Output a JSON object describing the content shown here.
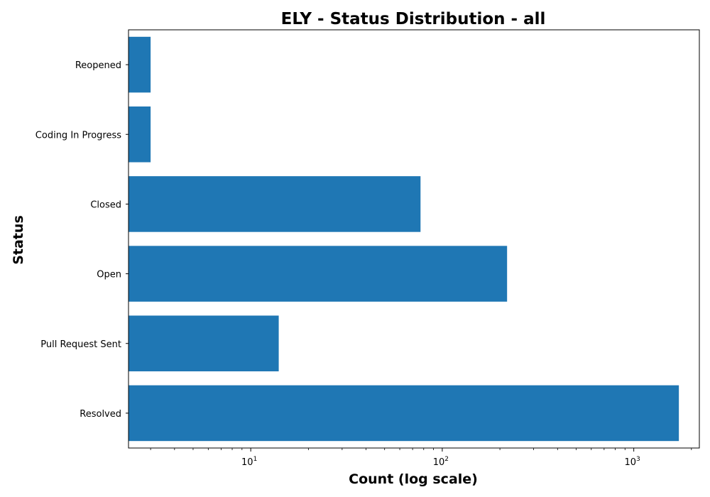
{
  "chart_data": {
    "type": "bar",
    "orientation": "horizontal",
    "title": "ELY - Status Distribution - all",
    "xlabel": "Count (log scale)",
    "ylabel": "Status",
    "xscale": "log",
    "xlim": [
      2.3,
      2200
    ],
    "xticks": [
      {
        "value": 10,
        "base": "10",
        "exp": "1"
      },
      {
        "value": 100,
        "base": "10",
        "exp": "2"
      },
      {
        "value": 1000,
        "base": "10",
        "exp": "3"
      }
    ],
    "categories": [
      "Resolved",
      "Pull Request Sent",
      "Open",
      "Closed",
      "Coding In Progress",
      "Reopened"
    ],
    "values": [
      1720,
      14,
      218,
      77,
      3,
      3
    ],
    "bar_color": "#1f77b4",
    "grid": false,
    "legend": "none"
  }
}
